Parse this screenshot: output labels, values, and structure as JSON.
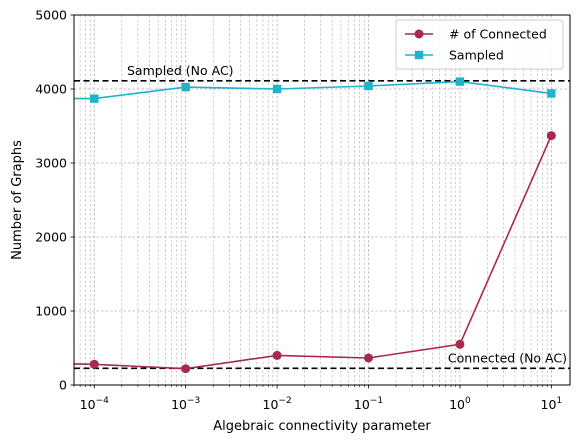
{
  "chart_data": {
    "type": "line",
    "title": "",
    "xlabel": "Algebraic connectivity parameter",
    "ylabel": "Number of Graphs",
    "xscale": "log",
    "xlim": [
      6e-05,
      16
    ],
    "ylim": [
      0,
      5000
    ],
    "x": [
      0.0001,
      0.001,
      0.01,
      0.1,
      1,
      10
    ],
    "x_tick_labels": [
      {
        "base": "10",
        "exp": "−4"
      },
      {
        "base": "10",
        "exp": "−3"
      },
      {
        "base": "10",
        "exp": "−2"
      },
      {
        "base": "10",
        "exp": "−1"
      },
      {
        "base": "10",
        "exp": "0"
      },
      {
        "base": "10",
        "exp": "1"
      }
    ],
    "y_ticks": [
      0,
      1000,
      2000,
      3000,
      4000,
      5000
    ],
    "y_tick_labels": [
      "0",
      "1000",
      "2000",
      "3000",
      "4000",
      "5000"
    ],
    "grid": true,
    "legend_position": "top-right",
    "series": [
      {
        "name": "# of Connected",
        "marker": "circle",
        "color": "#a8294a",
        "points": [
          [
            6e-05,
            285
          ],
          [
            0.0001,
            280
          ],
          [
            0.001,
            220
          ],
          [
            0.01,
            400
          ],
          [
            0.1,
            365
          ],
          [
            1,
            550
          ],
          [
            10,
            3370
          ]
        ]
      },
      {
        "name": "Sampled",
        "marker": "square",
        "color": "#1fb3cc",
        "points": [
          [
            6e-05,
            3870
          ],
          [
            0.0001,
            3870
          ],
          [
            0.001,
            4025
          ],
          [
            0.01,
            4000
          ],
          [
            0.1,
            4040
          ],
          [
            1,
            4100
          ],
          [
            10,
            3940
          ]
        ]
      }
    ],
    "reference_lines": [
      {
        "label": "Sampled (No AC)",
        "y": 4110,
        "label_align": "left"
      },
      {
        "label": "Connected (No AC)",
        "y": 225,
        "label_align": "right"
      }
    ]
  }
}
